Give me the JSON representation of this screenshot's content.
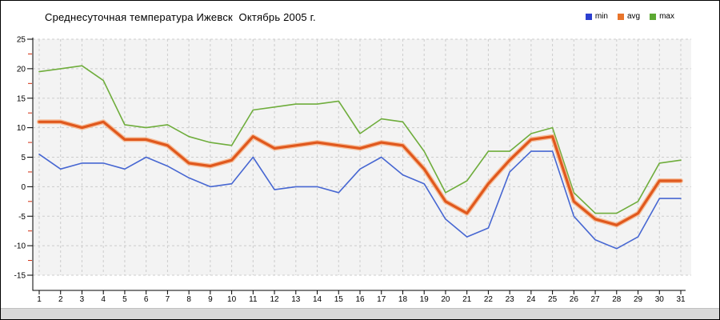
{
  "title": "Среднесуточная температура Ижевск  Октябрь 2005 г.",
  "legend": {
    "items": [
      {
        "label": "min",
        "color": "#2b3fd0"
      },
      {
        "label": "avg",
        "color": "#e8742b"
      },
      {
        "label": "max",
        "color": "#5ca832"
      }
    ]
  },
  "axis": {
    "y_ticks": [
      -15,
      -10,
      -5,
      0,
      5,
      10,
      15,
      20,
      25
    ],
    "x_ticks_first": 1,
    "x_ticks_last": 31,
    "minor_tick_color": "#d22b0d",
    "grid_color": "#cccccc",
    "plot_bg": "#f3f3f3",
    "axis_color": "#000000"
  },
  "chart_data": {
    "type": "line",
    "title": "Среднесуточная температура Ижевск  Октябрь 2005 г.",
    "xlabel": "",
    "ylabel": "",
    "x": [
      1,
      2,
      3,
      4,
      5,
      6,
      7,
      8,
      9,
      10,
      11,
      12,
      13,
      14,
      15,
      16,
      17,
      18,
      19,
      20,
      21,
      22,
      23,
      24,
      25,
      26,
      27,
      28,
      29,
      30,
      31
    ],
    "ylim": [
      -15,
      25
    ],
    "ytick_step": 5,
    "y_minor_tick_step": 2.5,
    "grid": true,
    "grid_style": "dashed",
    "legend_position": "top-right",
    "series": [
      {
        "name": "min",
        "color": "#4767d2",
        "width": 1.6,
        "values": [
          5.5,
          3,
          4,
          4,
          3,
          5,
          3.5,
          1.5,
          0,
          0.5,
          5,
          -0.5,
          0,
          0,
          -1,
          3,
          5,
          2,
          0.5,
          -5.5,
          -8.5,
          -7,
          2.5,
          6,
          6,
          -5,
          -9,
          -10.5,
          -8.5,
          -2,
          -2
        ]
      },
      {
        "name": "avg",
        "color": "#e0581d",
        "halo_color": "#f6b489",
        "width": 3.2,
        "values": [
          11,
          11,
          10,
          11,
          8,
          8,
          7,
          4,
          3.5,
          4.5,
          8.5,
          6.5,
          7,
          7.5,
          7,
          6.5,
          7.5,
          7,
          3,
          -2.5,
          -4.5,
          0.5,
          4.5,
          8,
          8.5,
          -2.5,
          -5.5,
          -6.5,
          -4.5,
          1,
          1
        ]
      },
      {
        "name": "max",
        "color": "#6fad3c",
        "width": 1.6,
        "values": [
          19.5,
          20,
          20.5,
          18,
          10.5,
          10,
          10.5,
          8.5,
          7.5,
          7,
          13,
          13.5,
          14,
          14,
          14.5,
          9,
          11.5,
          11,
          6,
          -1,
          1,
          6,
          6,
          9,
          10,
          -1,
          -4.5,
          -4.5,
          -2.5,
          4,
          4.5
        ]
      }
    ]
  }
}
